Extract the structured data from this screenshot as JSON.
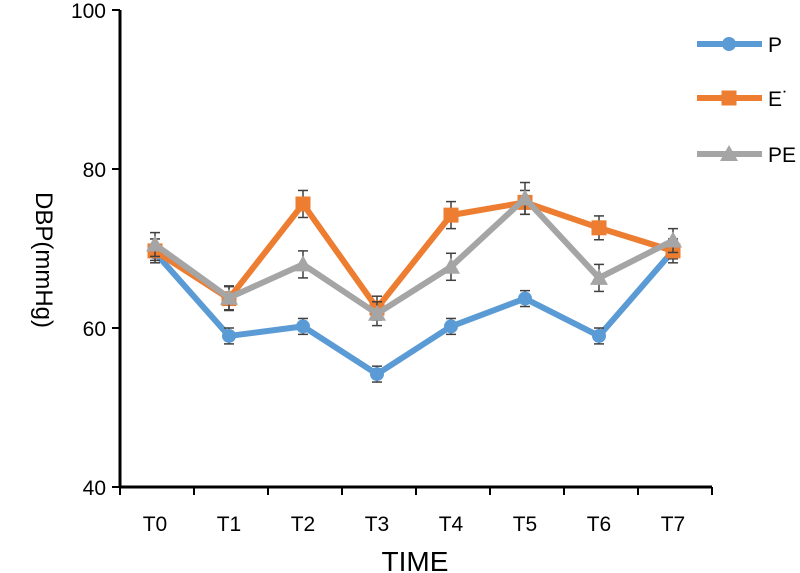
{
  "chart_data": {
    "type": "line",
    "title": "",
    "xlabel": "TIME",
    "ylabel": "DBP(mmHg)",
    "categories": [
      "T0",
      "T1",
      "T2",
      "T3",
      "T4",
      "T5",
      "T6",
      "T7"
    ],
    "ylim": [
      40,
      100
    ],
    "yticks": [
      "40",
      "60",
      "80",
      "100"
    ],
    "grid": false,
    "legend_position": "top-right",
    "series": [
      {
        "name": "P",
        "color": "#5B9BD5",
        "marker": "circle",
        "values": [
          69.5,
          59.0,
          60.2,
          54.2,
          60.2,
          63.7,
          59.0,
          69.7
        ],
        "errors": [
          1.0,
          1.0,
          1.0,
          1.0,
          1.0,
          1.0,
          1.0,
          1.0
        ]
      },
      {
        "name": "E˙",
        "color": "#ED7D31",
        "marker": "square",
        "values": [
          69.7,
          63.7,
          75.6,
          62.5,
          74.2,
          75.8,
          72.6,
          69.7
        ],
        "errors": [
          1.5,
          1.5,
          1.7,
          1.5,
          1.7,
          1.5,
          1.5,
          1.5
        ]
      },
      {
        "name": "PE",
        "color": "#A5A5A5",
        "marker": "triangle",
        "values": [
          70.5,
          63.8,
          68.0,
          61.8,
          67.7,
          76.3,
          66.3,
          71.0
        ],
        "errors": [
          1.5,
          1.5,
          1.7,
          1.5,
          1.7,
          2.0,
          1.7,
          1.5
        ]
      }
    ]
  }
}
